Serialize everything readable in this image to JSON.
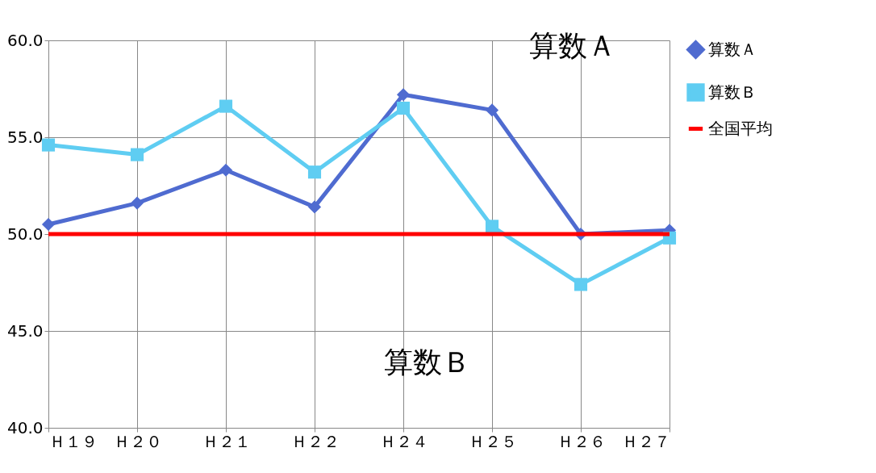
{
  "chart_data": {
    "type": "line",
    "categories": [
      "Ｈ１９",
      "Ｈ２０",
      "Ｈ２１",
      "Ｈ２２",
      "Ｈ２４",
      "Ｈ２５",
      "Ｈ２６",
      "Ｈ２７"
    ],
    "series": [
      {
        "name": "算数Ａ",
        "color": "#4f6bd0",
        "marker": "diamond",
        "values": [
          50.5,
          51.6,
          53.3,
          51.4,
          57.2,
          56.4,
          50.0,
          50.2
        ]
      },
      {
        "name": "算数Ｂ",
        "color": "#5fcdf2",
        "marker": "square",
        "values": [
          54.6,
          54.1,
          56.6,
          53.2,
          56.5,
          50.4,
          47.4,
          49.8
        ]
      },
      {
        "name": "全国平均",
        "color": "#ff0000",
        "marker": "none",
        "values": [
          50.0,
          50.0,
          50.0,
          50.0,
          50.0,
          50.0,
          50.0,
          50.0
        ]
      }
    ],
    "ylim": [
      40.0,
      60.0
    ],
    "yticks": [
      {
        "value": 40,
        "label": "40.0"
      },
      {
        "value": 45,
        "label": "45.0"
      },
      {
        "value": 50,
        "label": "50.0"
      },
      {
        "value": 55,
        "label": "55.0"
      },
      {
        "value": 60,
        "label": "60.0"
      }
    ],
    "grid": true,
    "legend": "right",
    "annotations": [
      "算数Ａ",
      "算数Ｂ"
    ]
  }
}
